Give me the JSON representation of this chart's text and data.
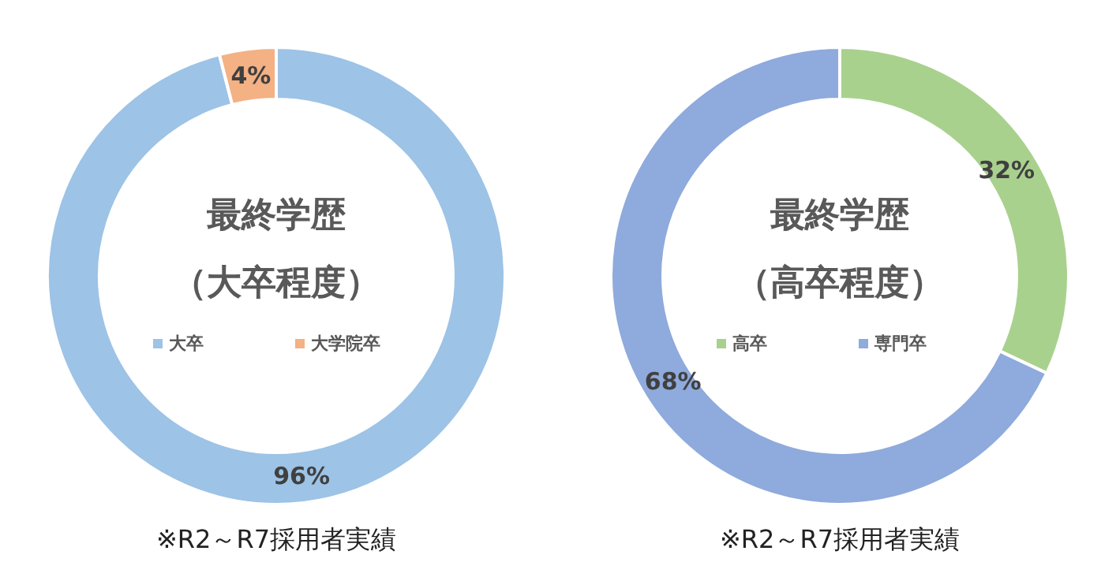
{
  "chart_data": [
    {
      "type": "donut",
      "title": "最終学歴",
      "subtitle": "（大卒程度）",
      "categories": [
        "大卒",
        "大学院卒"
      ],
      "values": [
        96,
        4
      ],
      "value_labels": [
        "96%",
        "4%"
      ],
      "colors": [
        "#9dc3e6",
        "#f4b183"
      ],
      "legend": "center",
      "annotations": [
        "※R2～R7採用者実績"
      ]
    },
    {
      "type": "donut",
      "title": "最終学歴",
      "subtitle": "（高卒程度）",
      "categories": [
        "高卒",
        "専門卒"
      ],
      "values": [
        32,
        68
      ],
      "value_labels": [
        "32%",
        "68%"
      ],
      "colors": [
        "#a9d18e",
        "#8faadc"
      ],
      "legend": "center",
      "annotations": [
        "※R2～R7採用者実績"
      ]
    }
  ]
}
